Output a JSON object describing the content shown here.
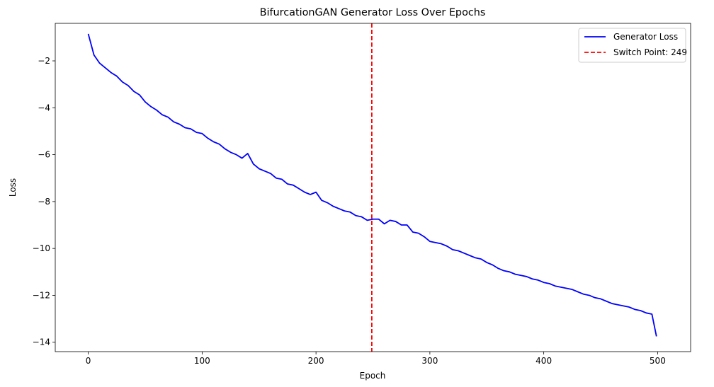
{
  "chart_data": {
    "type": "line",
    "title": "BifurcationGAN Generator Loss Over Epochs",
    "xlabel": "Epoch",
    "ylabel": "Loss",
    "xlim": [
      -29,
      529
    ],
    "ylim": [
      -14.4,
      -0.4
    ],
    "xticks": [
      0,
      100,
      200,
      300,
      400,
      500
    ],
    "yticks": [
      -2,
      -4,
      -6,
      -8,
      -10,
      -12,
      -14
    ],
    "grid": false,
    "legend": {
      "placement": "top-right"
    },
    "series": [
      {
        "name": "Generator Loss",
        "color": "#0000ff",
        "x": [
          0,
          5,
          10,
          15,
          20,
          25,
          30,
          35,
          40,
          45,
          50,
          55,
          60,
          65,
          70,
          75,
          80,
          85,
          90,
          95,
          100,
          105,
          110,
          115,
          120,
          125,
          130,
          135,
          140,
          145,
          150,
          155,
          160,
          165,
          170,
          175,
          180,
          185,
          190,
          195,
          200,
          205,
          210,
          215,
          220,
          225,
          230,
          235,
          240,
          245,
          250,
          255,
          260,
          265,
          270,
          275,
          280,
          285,
          290,
          295,
          300,
          305,
          310,
          315,
          320,
          325,
          330,
          335,
          340,
          345,
          350,
          355,
          360,
          365,
          370,
          375,
          380,
          385,
          390,
          395,
          400,
          405,
          410,
          415,
          420,
          425,
          430,
          435,
          440,
          445,
          450,
          455,
          460,
          465,
          470,
          475,
          480,
          485,
          490,
          495,
          499
        ],
        "y": [
          -0.85,
          -1.75,
          -2.1,
          -2.3,
          -2.5,
          -2.65,
          -2.9,
          -3.05,
          -3.3,
          -3.45,
          -3.75,
          -3.95,
          -4.1,
          -4.3,
          -4.4,
          -4.6,
          -4.7,
          -4.85,
          -4.9,
          -5.05,
          -5.1,
          -5.3,
          -5.45,
          -5.55,
          -5.75,
          -5.9,
          -6.0,
          -6.15,
          -5.95,
          -6.4,
          -6.6,
          -6.7,
          -6.8,
          -7.0,
          -7.05,
          -7.25,
          -7.3,
          -7.45,
          -7.6,
          -7.7,
          -7.6,
          -7.95,
          -8.05,
          -8.2,
          -8.3,
          -8.4,
          -8.45,
          -8.6,
          -8.65,
          -8.8,
          -8.75,
          -8.75,
          -8.95,
          -8.8,
          -8.85,
          -9.0,
          -9.0,
          -9.3,
          -9.35,
          -9.5,
          -9.7,
          -9.75,
          -9.8,
          -9.9,
          -10.05,
          -10.1,
          -10.2,
          -10.3,
          -10.4,
          -10.45,
          -10.6,
          -10.7,
          -10.85,
          -10.95,
          -11.0,
          -11.1,
          -11.15,
          -11.2,
          -11.3,
          -11.35,
          -11.45,
          -11.5,
          -11.6,
          -11.65,
          -11.7,
          -11.75,
          -11.85,
          -11.95,
          -12.0,
          -12.1,
          -12.15,
          -12.25,
          -12.35,
          -12.4,
          -12.45,
          -12.5,
          -12.6,
          -12.65,
          -12.75,
          -12.8,
          -13.75
        ]
      }
    ],
    "vline": {
      "name": "Switch Point: 249",
      "x": 249,
      "color": "#ff0000",
      "style": "dashed"
    }
  }
}
